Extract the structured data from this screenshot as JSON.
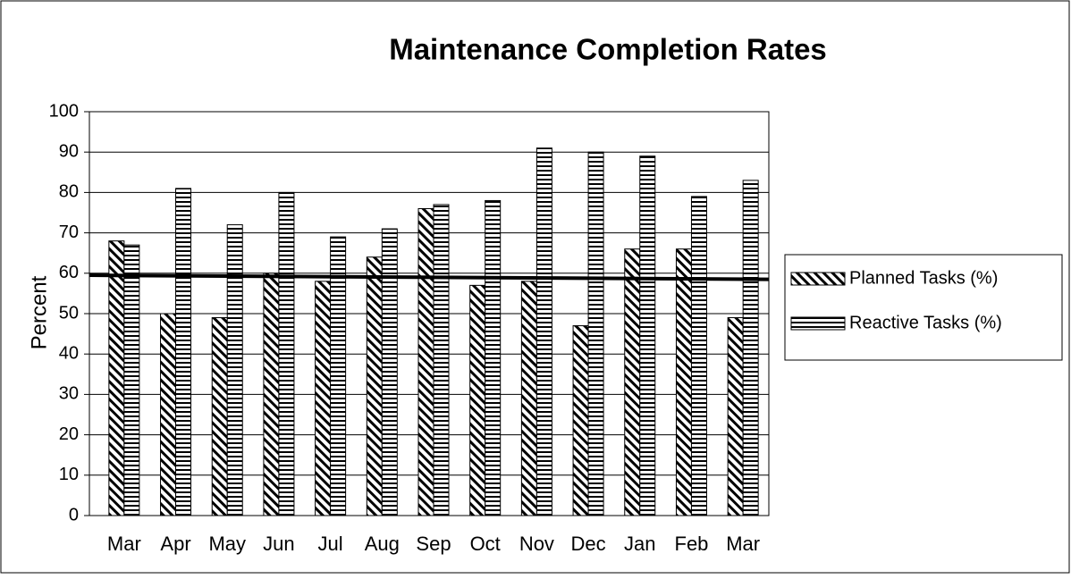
{
  "chart_data": {
    "type": "bar",
    "title": "Maintenance Completion Rates",
    "y_label": "Percent",
    "categories": [
      "Mar",
      "Apr",
      "May",
      "Jun",
      "Jul",
      "Aug",
      "Sep",
      "Oct",
      "Nov",
      "Dec",
      "Jan",
      "Feb",
      "Mar"
    ],
    "series": [
      {
        "name": "Planned Tasks (%)",
        "color": "#000000",
        "values": [
          68,
          50,
          49,
          60,
          58,
          64,
          76,
          57,
          58,
          47,
          66,
          66,
          49
        ]
      },
      {
        "name": "Reactive Tasks (%)",
        "color": "#000000",
        "values": [
          67,
          81,
          72,
          80,
          69,
          71,
          77,
          78,
          91,
          90,
          89,
          79,
          83
        ]
      }
    ],
    "trendline": [
      59.5,
      58.5
    ],
    "ylim": [
      0,
      100
    ],
    "yticks": [
      0,
      10,
      20,
      30,
      40,
      50,
      60,
      70,
      80,
      90,
      100
    ],
    "grid": true,
    "legend": "right"
  }
}
